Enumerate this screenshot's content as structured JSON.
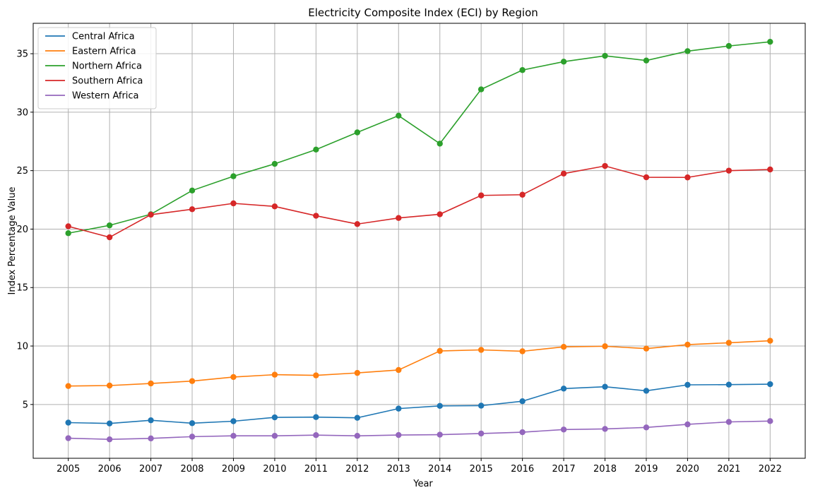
{
  "chart_data": {
    "type": "line",
    "title": "Electricity Composite Index (ECI) by Region",
    "xlabel": "Year",
    "ylabel": "Index Percentage Value",
    "x": [
      2005,
      2006,
      2007,
      2008,
      2009,
      2010,
      2011,
      2012,
      2013,
      2014,
      2015,
      2016,
      2017,
      2018,
      2019,
      2020,
      2021,
      2022
    ],
    "yticks": [
      5,
      10,
      15,
      20,
      25,
      30,
      35
    ],
    "ylim": [
      0.4,
      37.6
    ],
    "grid": true,
    "legend_position": "top-left",
    "series": [
      {
        "name": "Central Africa",
        "color": "#1f77b4",
        "values": [
          3.45,
          3.38,
          3.65,
          3.4,
          3.57,
          3.9,
          3.92,
          3.86,
          4.65,
          4.88,
          4.9,
          5.28,
          6.36,
          6.52,
          6.17,
          6.68,
          6.7,
          6.74
        ]
      },
      {
        "name": "Eastern Africa",
        "color": "#ff7f0e",
        "values": [
          6.58,
          6.62,
          6.8,
          7.0,
          7.35,
          7.55,
          7.49,
          7.7,
          7.95,
          9.58,
          9.67,
          9.55,
          9.93,
          9.98,
          9.78,
          10.12,
          10.28,
          10.45
        ]
      },
      {
        "name": "Northern Africa",
        "color": "#2ca02c",
        "values": [
          19.65,
          20.32,
          21.27,
          23.3,
          24.52,
          25.58,
          26.8,
          28.27,
          29.7,
          27.31,
          31.95,
          33.6,
          34.32,
          34.82,
          34.42,
          35.22,
          35.66,
          36.02
        ]
      },
      {
        "name": "Southern Africa",
        "color": "#d62728",
        "values": [
          20.24,
          19.3,
          21.23,
          21.7,
          22.2,
          21.94,
          21.14,
          20.43,
          20.95,
          21.27,
          22.88,
          22.94,
          24.75,
          25.4,
          24.43,
          24.42,
          25.0,
          25.1
        ]
      },
      {
        "name": "Western Africa",
        "color": "#9467bd",
        "values": [
          2.12,
          2.02,
          2.1,
          2.25,
          2.32,
          2.32,
          2.38,
          2.32,
          2.39,
          2.42,
          2.52,
          2.63,
          2.86,
          2.91,
          3.04,
          3.3,
          3.51,
          3.58
        ]
      }
    ]
  }
}
